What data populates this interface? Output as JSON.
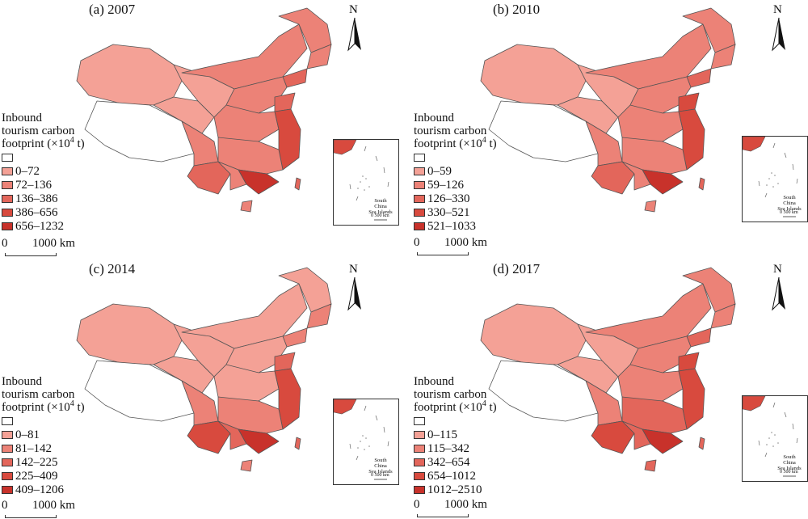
{
  "panels": [
    {
      "title": "(a) 2007",
      "legend_title_lines": [
        "Inbound",
        "tourism carbon",
        "footprint (×10",
        "4",
        " t)"
      ],
      "classes": [
        "0–72",
        "72–136",
        "136–386",
        "386–656",
        "656–1232"
      ]
    },
    {
      "title": "(b) 2010",
      "legend_title_lines": [
        "Inbound",
        "tourism carbon",
        "footprint (×10",
        "4",
        " t)"
      ],
      "classes": [
        "0–59",
        "59–126",
        "126–330",
        "330–521",
        "521–1033"
      ]
    },
    {
      "title": "(c) 2014",
      "legend_title_lines": [
        "Inbound",
        "tourism carbon",
        "footprint (×10",
        "4",
        " t)"
      ],
      "classes": [
        "0–81",
        "81–142",
        "142–225",
        "225–409",
        "409–1206"
      ]
    },
    {
      "title": "(d) 2017",
      "legend_title_lines": [
        "Inbound",
        "tourism carbon",
        "footprint (×10",
        "4",
        " t)"
      ],
      "classes": [
        "0–115",
        "115–342",
        "342–654",
        "654–1012",
        "1012–2510"
      ]
    }
  ],
  "class_colors": [
    "#ffffff",
    "#f4a196",
    "#ec8277",
    "#e3665b",
    "#d84a3e",
    "#c8322b"
  ],
  "scale": {
    "zero": "0",
    "distance": "1000 km"
  },
  "north_label": "N",
  "inset": {
    "label_line1": "South China",
    "label_line2": "Sea Islands",
    "scale_zero": "0",
    "scale_distance": "500 km"
  }
}
